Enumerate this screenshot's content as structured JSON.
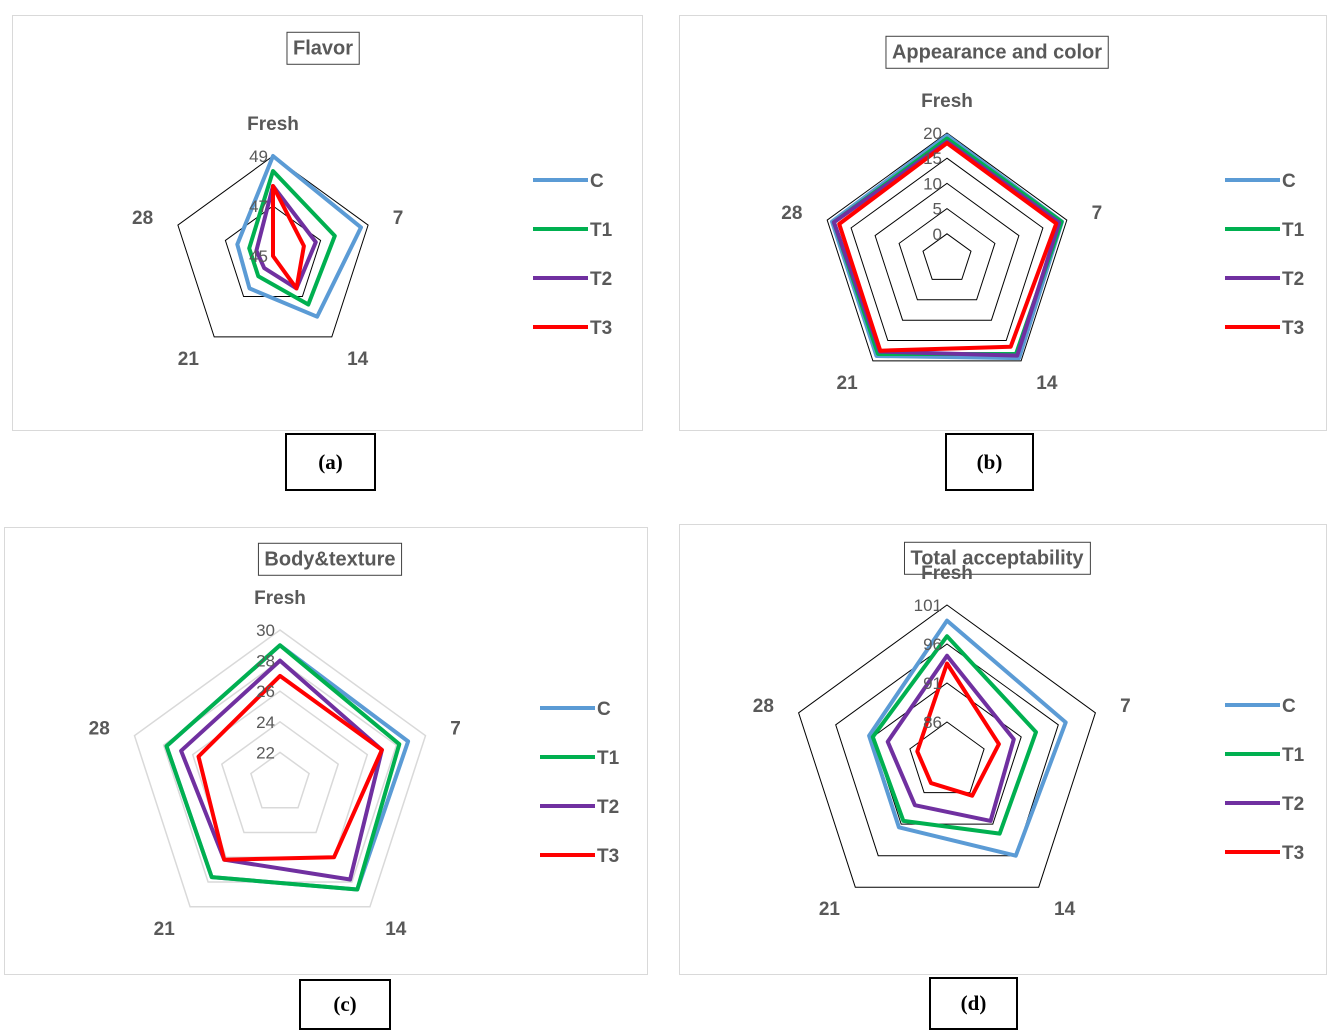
{
  "colors": {
    "C": "#5b9bd5",
    "T1": "#00b050",
    "T2": "#7030a0",
    "T3": "#ff0000",
    "grid_dark": "#000000",
    "grid_light": "#d9d9d9"
  },
  "chart_data": [
    {
      "type": "radar",
      "title": "Flavor",
      "caption": "(a)",
      "categories": [
        "Fresh",
        "7",
        "14",
        "21",
        "28"
      ],
      "ticks": [
        "45",
        "47",
        "49"
      ],
      "rmin": 45,
      "rmax": 49,
      "grid_levels": [
        47,
        49
      ],
      "grid": "dark",
      "series": [
        {
          "name": "C",
          "values": [
            49.0,
            48.7,
            48.0,
            46.6,
            46.5
          ]
        },
        {
          "name": "T1",
          "values": [
            48.4,
            47.6,
            47.4,
            46.0,
            46.0
          ]
        },
        {
          "name": "T2",
          "values": [
            47.8,
            46.8,
            46.6,
            45.6,
            45.7
          ]
        },
        {
          "name": "T3",
          "values": [
            47.8,
            46.3,
            46.6,
            44.2,
            44.3
          ]
        }
      ]
    },
    {
      "type": "radar",
      "title": "Appearance and color",
      "caption": "(b)",
      "categories": [
        "Fresh",
        "7",
        "14",
        "21",
        "28"
      ],
      "ticks": [
        "0",
        "5",
        "10",
        "15",
        "20"
      ],
      "rmin": -5,
      "rmax": 20,
      "grid_levels": [
        0,
        5,
        10,
        15,
        20
      ],
      "grid": "dark",
      "series": [
        {
          "name": "C",
          "values": [
            19.5,
            19.0,
            19.3,
            18.8,
            19.0
          ]
        },
        {
          "name": "T1",
          "values": [
            18.9,
            18.9,
            18.3,
            18.3,
            18.6
          ]
        },
        {
          "name": "T2",
          "values": [
            18.3,
            18.4,
            18.7,
            17.7,
            18.6
          ]
        },
        {
          "name": "T3",
          "values": [
            18.0,
            17.8,
            16.5,
            17.5,
            17.5
          ]
        }
      ]
    },
    {
      "type": "radar",
      "title": "Body&texture",
      "caption": "(c)",
      "categories": [
        "Fresh",
        "7",
        "14",
        "21",
        "28"
      ],
      "ticks": [
        "22",
        "24",
        "26",
        "28",
        "30"
      ],
      "rmin": 20,
      "rmax": 30,
      "grid_levels": [
        22,
        24,
        26,
        28,
        30
      ],
      "grid": "light",
      "series": [
        {
          "name": "C",
          "values": [
            29.0,
            28.8,
            28.6,
            27.6,
            27.8
          ]
        },
        {
          "name": "T1",
          "values": [
            29.0,
            28.2,
            28.6,
            27.6,
            27.8
          ]
        },
        {
          "name": "T2",
          "values": [
            28.0,
            27.0,
            27.8,
            26.2,
            26.8
          ]
        },
        {
          "name": "T3",
          "values": [
            27.0,
            27.0,
            26.0,
            26.2,
            25.6
          ]
        }
      ]
    },
    {
      "type": "radar",
      "title": "Total acceptability",
      "caption": "(d)",
      "categories": [
        "Fresh",
        "7",
        "14",
        "21",
        "28"
      ],
      "ticks": [
        "86",
        "91",
        "96",
        "101"
      ],
      "rmin": 81,
      "rmax": 101,
      "grid_levels": [
        86,
        91,
        96,
        101
      ],
      "grid": "dark",
      "series": [
        {
          "name": "C",
          "values": [
            99.0,
            97.0,
            96.0,
            91.5,
            91.5
          ]
        },
        {
          "name": "T1",
          "values": [
            97.0,
            93.0,
            92.5,
            90.5,
            91.0
          ]
        },
        {
          "name": "T2",
          "values": [
            94.5,
            90.0,
            90.5,
            88.0,
            89.0
          ]
        },
        {
          "name": "T3",
          "values": [
            93.5,
            88.0,
            86.5,
            84.5,
            85.0
          ]
        }
      ]
    }
  ]
}
